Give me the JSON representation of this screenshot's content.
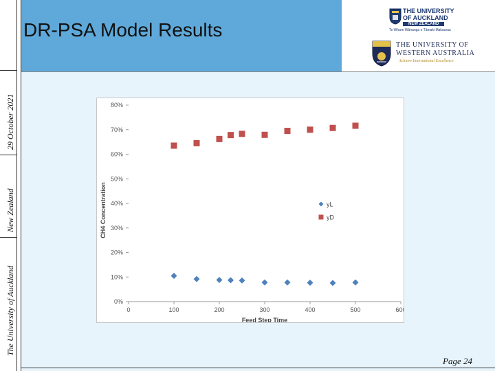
{
  "title": "DR-PSA Model Results",
  "sidebar": {
    "date": "29 October 2021",
    "country": "New Zealand",
    "university": "The University of Auckland"
  },
  "logos": {
    "auckland_line1": "THE UNIVERSITY",
    "auckland_line2": "OF AUCKLAND",
    "auckland_line3": "NEW ZEALAND",
    "auckland_line4": "Te Whare Wānanga o Tāmaki Makaurau",
    "uwa_line1": "THE UNIVERSITY OF",
    "uwa_line2": "WESTERN AUSTRALIA",
    "uwa_line3": "Achieve International Excellence"
  },
  "page_label": "Page 24",
  "colors": {
    "header": "#5ea9d9",
    "background": "#e7f4fb",
    "series_yL": "#4f81bd",
    "series_yD": "#c0504d"
  },
  "chart_data": {
    "type": "scatter",
    "title": "",
    "xlabel": "Feed Step Time",
    "ylabel": "CH4 Concentration",
    "xlim": [
      0,
      600
    ],
    "ylim": [
      0,
      0.8
    ],
    "xticks": [
      "0",
      "100",
      "200",
      "300",
      "400",
      "500",
      "600"
    ],
    "yticks": [
      "0%",
      "10%",
      "20%",
      "30%",
      "40%",
      "50%",
      "60%",
      "70%",
      "80%"
    ],
    "legend_position": "right",
    "grid": false,
    "series": [
      {
        "name": "yL",
        "marker": "diamond",
        "color": "#4f81bd",
        "x": [
          100,
          150,
          200,
          225,
          250,
          300,
          350,
          400,
          450,
          500
        ],
        "y": [
          0.105,
          0.092,
          0.088,
          0.087,
          0.086,
          0.078,
          0.078,
          0.077,
          0.076,
          0.078
        ]
      },
      {
        "name": "yD",
        "marker": "square",
        "color": "#c0504d",
        "x": [
          100,
          150,
          200,
          225,
          250,
          300,
          350,
          400,
          450,
          500
        ],
        "y": [
          0.635,
          0.645,
          0.662,
          0.678,
          0.683,
          0.679,
          0.695,
          0.7,
          0.707,
          0.716
        ]
      }
    ]
  }
}
